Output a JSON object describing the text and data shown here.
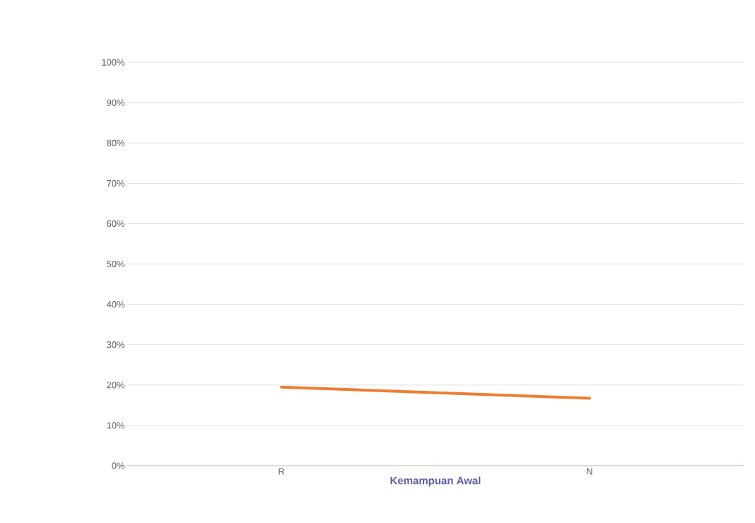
{
  "chart_data": {
    "type": "line",
    "xlabel": "Kemampuan Awal",
    "categories": [
      "R",
      "N"
    ],
    "series": [
      {
        "color": "#ed7d31",
        "values": [
          19.5,
          16.7
        ]
      }
    ],
    "ylim": [
      0,
      100
    ],
    "yticks": [
      {
        "value": 0,
        "label": "0%"
      },
      {
        "value": 10,
        "label": "10%"
      },
      {
        "value": 20,
        "label": "20%"
      },
      {
        "value": 30,
        "label": "30%"
      },
      {
        "value": 40,
        "label": "40%"
      },
      {
        "value": 50,
        "label": "50%"
      },
      {
        "value": 60,
        "label": "60%"
      },
      {
        "value": 70,
        "label": "70%"
      },
      {
        "value": 80,
        "label": "80%"
      },
      {
        "value": 90,
        "label": "90%"
      },
      {
        "value": 100,
        "label": "100%"
      }
    ],
    "grid": "y",
    "marker": "none",
    "line_style": "solid"
  }
}
